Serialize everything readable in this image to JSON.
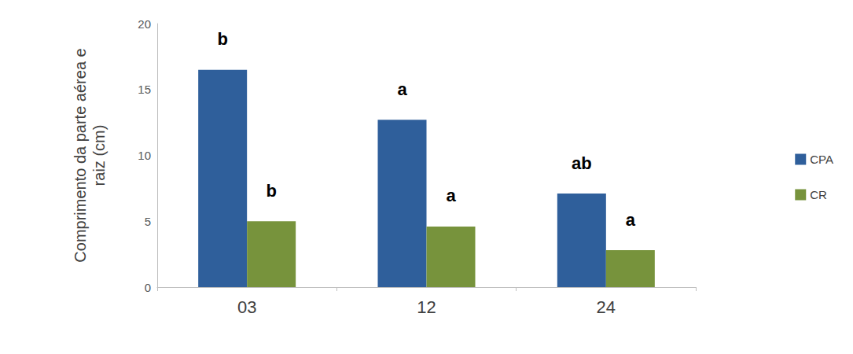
{
  "chart_data": {
    "type": "bar",
    "y_label": "Comprimento da parte aérea e raiz (cm)",
    "categories": [
      "03",
      "12",
      "24"
    ],
    "series": [
      {
        "name": "CPA",
        "color": "#2f5f9b",
        "values": [
          16.5,
          12.7,
          7.1
        ],
        "annotations": [
          "b",
          "a",
          "ab"
        ]
      },
      {
        "name": "CR",
        "color": "#77933c",
        "values": [
          5.0,
          4.6,
          2.8
        ],
        "annotations": [
          "b",
          "a",
          "a"
        ]
      }
    ],
    "ylim": [
      0,
      20
    ],
    "yticks": [
      0,
      5,
      10,
      15,
      20
    ],
    "grid": false,
    "legend": "right"
  }
}
